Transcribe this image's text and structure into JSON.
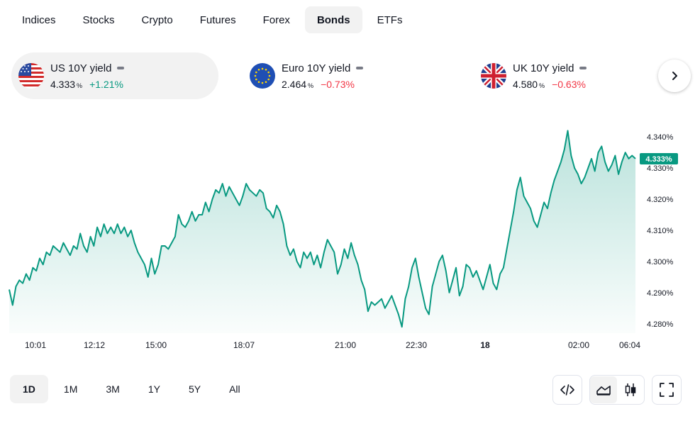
{
  "tabs": [
    "Indices",
    "Stocks",
    "Crypto",
    "Futures",
    "Forex",
    "Bonds",
    "ETFs"
  ],
  "active_tab": "Bonds",
  "cards": [
    {
      "name": "US 10Y yield",
      "value": "4.333",
      "unit": "%",
      "change": "+1.21%",
      "direction": "up"
    },
    {
      "name": "Euro 10Y yield",
      "value": "2.464",
      "unit": "%",
      "change": "−0.73%",
      "direction": "down"
    },
    {
      "name": "UK 10Y yield",
      "value": "4.580",
      "unit": "%",
      "change": "−0.63%",
      "direction": "down"
    }
  ],
  "icons": {
    "next": "chevron-right-icon",
    "embed": "code-icon",
    "area": "area-chart-icon",
    "candles": "candlestick-icon",
    "fullscreen": "fullscreen-icon"
  },
  "colors": {
    "up": "#089981",
    "down": "#f23645",
    "line": "#089981",
    "fill": "#089981"
  },
  "ranges": [
    "1D",
    "1M",
    "3M",
    "1Y",
    "5Y",
    "All"
  ],
  "active_range": "1D",
  "chart_data": {
    "type": "area",
    "title": "US 10Y yield",
    "series": [
      {
        "name": "US 10Y yield",
        "unit": "%",
        "values": [
          4.291,
          4.286,
          4.292,
          4.294,
          4.293,
          4.296,
          4.294,
          4.298,
          4.297,
          4.301,
          4.299,
          4.303,
          4.302,
          4.305,
          4.304,
          4.303,
          4.306,
          4.304,
          4.302,
          4.305,
          4.304,
          4.309,
          4.305,
          4.303,
          4.308,
          4.305,
          4.311,
          4.308,
          4.312,
          4.309,
          4.311,
          4.309,
          4.312,
          4.309,
          4.311,
          4.308,
          4.31,
          4.306,
          4.303,
          4.301,
          4.299,
          4.295,
          4.301,
          4.296,
          4.299,
          4.305,
          4.305,
          4.304,
          4.306,
          4.308,
          4.315,
          4.312,
          4.311,
          4.313,
          4.316,
          4.313,
          4.315,
          4.315,
          4.319,
          4.316,
          4.32,
          4.323,
          4.322,
          4.325,
          4.321,
          4.324,
          4.322,
          4.32,
          4.318,
          4.321,
          4.325,
          4.323,
          4.322,
          4.321,
          4.323,
          4.322,
          4.317,
          4.316,
          4.314,
          4.318,
          4.316,
          4.312,
          4.305,
          4.302,
          4.304,
          4.3,
          4.298,
          4.303,
          4.301,
          4.303,
          4.299,
          4.302,
          4.298,
          4.303,
          4.307,
          4.305,
          4.303,
          4.296,
          4.299,
          4.304,
          4.301,
          4.306,
          4.302,
          4.299,
          4.294,
          4.291,
          4.284,
          4.287,
          4.286,
          4.287,
          4.288,
          4.285,
          4.287,
          4.289,
          4.286,
          4.283,
          4.279,
          4.288,
          4.292,
          4.298,
          4.301,
          4.295,
          4.29,
          4.285,
          4.283,
          4.292,
          4.296,
          4.3,
          4.302,
          4.297,
          4.29,
          4.294,
          4.298,
          4.289,
          4.292,
          4.299,
          4.298,
          4.295,
          4.297,
          4.294,
          4.291,
          4.295,
          4.299,
          4.293,
          4.291,
          4.296,
          4.298,
          4.304,
          4.31,
          4.316,
          4.323,
          4.327,
          4.321,
          4.319,
          4.317,
          4.313,
          4.311,
          4.315,
          4.319,
          4.317,
          4.322,
          4.326,
          4.329,
          4.332,
          4.336,
          4.342,
          4.334,
          4.33,
          4.328,
          4.325,
          4.327,
          4.33,
          4.333,
          4.329,
          4.335,
          4.337,
          4.332,
          4.329,
          4.331,
          4.334,
          4.328,
          4.332,
          4.335,
          4.333,
          4.334,
          4.333
        ]
      }
    ],
    "x_ticks": [
      "10:01",
      "12:12",
      "15:00",
      "18:07",
      "21:00",
      "22:30",
      "18",
      "02:00",
      "06:04"
    ],
    "x_tick_bold": "18",
    "y_ticks": [
      "4.340%",
      "4.330%",
      "4.320%",
      "4.310%",
      "4.300%",
      "4.290%",
      "4.280%"
    ],
    "ylim": [
      4.277,
      4.343
    ],
    "last_value_label": "4.333%"
  }
}
